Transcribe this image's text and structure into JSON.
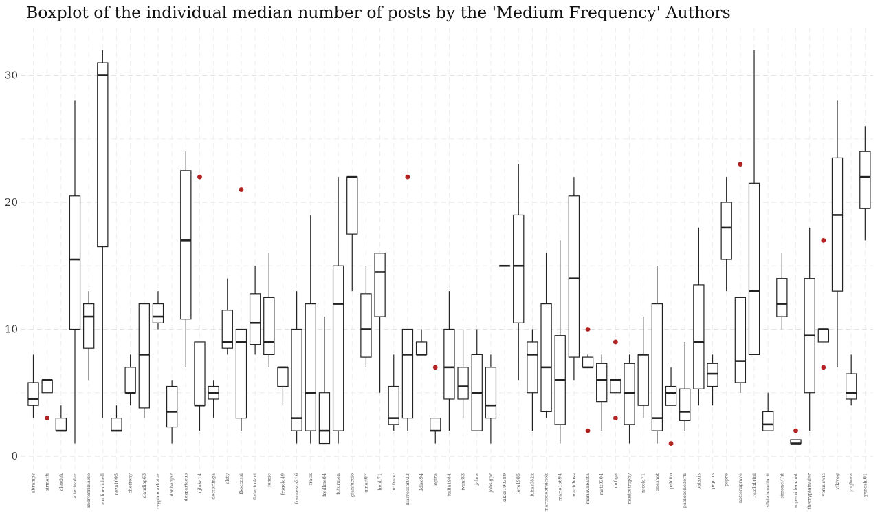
{
  "chart_data": {
    "type": "boxplot",
    "title": "Boxplot of the individual median number of posts by the 'Medium Frequency' Authors",
    "xlabel": "",
    "ylabel": "",
    "ylim": [
      -1.3,
      33.5
    ],
    "yticks": [
      0,
      10,
      20,
      30
    ],
    "grid": true,
    "outlier_color": "#b22222",
    "box_color": "#222222",
    "categories": [
      "abramps",
      "airmatti",
      "alexdek",
      "altertrader",
      "andreatrimaldo",
      "carolinecichell",
      "ceza1095",
      "chefrony",
      "claudiop63",
      "cryptomarketer",
      "danbadjar",
      "dexpartacus",
      "djluka14",
      "doctorlinga",
      "elsty",
      "fboccassi",
      "federicolari",
      "fonzie",
      "fragola49",
      "francesca216",
      "frack",
      "fredlme84",
      "futurmen",
      "gianfuccio",
      "ginatt07",
      "heidi71",
      "hrifranc",
      "illarrosser923",
      "ildivo94",
      "iopira",
      "italia1984",
      "ivanf83",
      "jabra",
      "jobs-gpr",
      "kikka190389",
      "lore1985",
      "lukas082x",
      "marcodebreiciok",
      "mario15694",
      "marioboss",
      "mariavabasta",
      "matt9304",
      "mrfiga",
      "musicetrophy",
      "nicola71",
      "oneshot",
      "pablito",
      "paolobenelforti",
      "pataxis",
      "peprus",
      "pepre",
      "notterupravè",
      "rscalabrini",
      "silviabenelforti",
      "simone77it",
      "supervideochat",
      "thecryptotrader",
      "veruuswis",
      "vikivog",
      "yoghera",
      "yunoshi01"
    ],
    "boxes": [
      {
        "min": 3,
        "q1": 4,
        "median": 4.5,
        "q3": 5.8,
        "max": 8,
        "outliers": []
      },
      {
        "min": 5,
        "q1": 5,
        "median": 6,
        "q3": 6,
        "max": 6,
        "outliers": [
          3
        ]
      },
      {
        "min": 2,
        "q1": 2,
        "median": 2,
        "q3": 3,
        "max": 4,
        "outliers": []
      },
      {
        "min": 1,
        "q1": 10,
        "median": 15.5,
        "q3": 20.5,
        "max": 28,
        "outliers": []
      },
      {
        "min": 6,
        "q1": 8.5,
        "median": 11,
        "q3": 12,
        "max": 13,
        "outliers": []
      },
      {
        "min": 3,
        "q1": 16.5,
        "median": 30,
        "q3": 31,
        "max": 32,
        "outliers": []
      },
      {
        "min": 2,
        "q1": 2,
        "median": 2,
        "q3": 3,
        "max": 4,
        "outliers": []
      },
      {
        "min": 4,
        "q1": 5,
        "median": 5,
        "q3": 7,
        "max": 8,
        "outliers": []
      },
      {
        "min": 3,
        "q1": 3.8,
        "median": 8,
        "q3": 12,
        "max": 12,
        "outliers": []
      },
      {
        "min": 10,
        "q1": 10.5,
        "median": 11,
        "q3": 12,
        "max": 13,
        "outliers": []
      },
      {
        "min": 1,
        "q1": 2.3,
        "median": 3.5,
        "q3": 5.5,
        "max": 6,
        "outliers": []
      },
      {
        "min": 7,
        "q1": 10.8,
        "median": 17,
        "q3": 22.5,
        "max": 24,
        "outliers": []
      },
      {
        "min": 2,
        "q1": 4,
        "median": 4,
        "q3": 9,
        "max": 9,
        "outliers": [
          22
        ]
      },
      {
        "min": 3,
        "q1": 4.5,
        "median": 5,
        "q3": 5.5,
        "max": 6,
        "outliers": []
      },
      {
        "min": 8,
        "q1": 8.5,
        "median": 9,
        "q3": 11.5,
        "max": 14,
        "outliers": []
      },
      {
        "min": 2,
        "q1": 3,
        "median": 9,
        "q3": 10,
        "max": 10,
        "outliers": [
          21
        ]
      },
      {
        "min": 8,
        "q1": 8.8,
        "median": 10.5,
        "q3": 12.8,
        "max": 15,
        "outliers": []
      },
      {
        "min": 7,
        "q1": 8,
        "median": 9,
        "q3": 12.5,
        "max": 16,
        "outliers": []
      },
      {
        "min": 4,
        "q1": 5.5,
        "median": 7,
        "q3": 7,
        "max": 7,
        "outliers": []
      },
      {
        "min": 1,
        "q1": 2,
        "median": 3,
        "q3": 10,
        "max": 13,
        "outliers": []
      },
      {
        "min": 1,
        "q1": 2,
        "median": 5,
        "q3": 12,
        "max": 19,
        "outliers": []
      },
      {
        "min": 1,
        "q1": 1,
        "median": 2,
        "q3": 5,
        "max": 11,
        "outliers": []
      },
      {
        "min": 1,
        "q1": 2,
        "median": 12,
        "q3": 15,
        "max": 22,
        "outliers": []
      },
      {
        "min": 13,
        "q1": 17.5,
        "median": 22,
        "q3": 22,
        "max": 22,
        "outliers": []
      },
      {
        "min": 7,
        "q1": 7.8,
        "median": 10,
        "q3": 12.8,
        "max": 15,
        "outliers": []
      },
      {
        "min": 5,
        "q1": 11,
        "median": 14.5,
        "q3": 16,
        "max": 16,
        "outliers": []
      },
      {
        "min": 2,
        "q1": 2.5,
        "median": 3,
        "q3": 5.5,
        "max": 8,
        "outliers": []
      },
      {
        "min": 2,
        "q1": 3,
        "median": 8,
        "q3": 10,
        "max": 10,
        "outliers": [
          22
        ]
      },
      {
        "min": 8,
        "q1": 8,
        "median": 8,
        "q3": 9,
        "max": 10,
        "outliers": []
      },
      {
        "min": 1,
        "q1": 2,
        "median": 2,
        "q3": 3,
        "max": 3,
        "outliers": [
          7
        ]
      },
      {
        "min": 2,
        "q1": 4.5,
        "median": 7,
        "q3": 10,
        "max": 13,
        "outliers": []
      },
      {
        "min": 3,
        "q1": 4.5,
        "median": 5.5,
        "q3": 7,
        "max": 10,
        "outliers": []
      },
      {
        "min": 2,
        "q1": 2,
        "median": 5,
        "q3": 8,
        "max": 10,
        "outliers": []
      },
      {
        "min": 1,
        "q1": 3,
        "median": 4,
        "q3": 7,
        "max": 8,
        "outliers": []
      },
      {
        "min": 15,
        "q1": 15,
        "median": 15,
        "q3": 15,
        "max": 15,
        "outliers": []
      },
      {
        "min": 6,
        "q1": 10.5,
        "median": 15,
        "q3": 19,
        "max": 23,
        "outliers": []
      },
      {
        "min": 2,
        "q1": 5,
        "median": 8,
        "q3": 9,
        "max": 10,
        "outliers": []
      },
      {
        "min": 3,
        "q1": 3.5,
        "median": 7,
        "q3": 12,
        "max": 16,
        "outliers": []
      },
      {
        "min": 1,
        "q1": 2.5,
        "median": 6,
        "q3": 9.5,
        "max": 17,
        "outliers": []
      },
      {
        "min": 6,
        "q1": 7.8,
        "median": 14,
        "q3": 20.5,
        "max": 22,
        "outliers": []
      },
      {
        "min": 7,
        "q1": 7,
        "median": 7,
        "q3": 7.8,
        "max": 8,
        "outliers": [
          10,
          2
        ]
      },
      {
        "min": 2,
        "q1": 4.3,
        "median": 6,
        "q3": 7.3,
        "max": 8,
        "outliers": []
      },
      {
        "min": 5,
        "q1": 5,
        "median": 6,
        "q3": 6,
        "max": 6,
        "outliers": [
          9,
          3
        ]
      },
      {
        "min": 1,
        "q1": 2.5,
        "median": 5,
        "q3": 7.3,
        "max": 8,
        "outliers": []
      },
      {
        "min": 3,
        "q1": 4,
        "median": 8,
        "q3": 8,
        "max": 11,
        "outliers": []
      },
      {
        "min": 1,
        "q1": 2,
        "median": 3,
        "q3": 12,
        "max": 15,
        "outliers": []
      },
      {
        "min": 4,
        "q1": 4,
        "median": 5,
        "q3": 5.5,
        "max": 7,
        "outliers": [
          1
        ]
      },
      {
        "min": 2,
        "q1": 2.8,
        "median": 3.5,
        "q3": 5.3,
        "max": 9,
        "outliers": []
      },
      {
        "min": 4,
        "q1": 5.3,
        "median": 9,
        "q3": 13.5,
        "max": 18,
        "outliers": []
      },
      {
        "min": 4,
        "q1": 5.5,
        "median": 6.5,
        "q3": 7.3,
        "max": 8,
        "outliers": []
      },
      {
        "min": 13,
        "q1": 15.5,
        "median": 18,
        "q3": 20,
        "max": 22,
        "outliers": []
      },
      {
        "min": 5,
        "q1": 5.8,
        "median": 7.5,
        "q3": 12.5,
        "max": 12.5,
        "outliers": [
          23
        ]
      },
      {
        "min": 8,
        "q1": 8,
        "median": 13,
        "q3": 21.5,
        "max": 32,
        "outliers": []
      },
      {
        "min": 2,
        "q1": 2,
        "median": 2.5,
        "q3": 3.5,
        "max": 5,
        "outliers": []
      },
      {
        "min": 10,
        "q1": 11,
        "median": 12,
        "q3": 14,
        "max": 16,
        "outliers": []
      },
      {
        "min": 1,
        "q1": 1,
        "median": 1,
        "q3": 1.3,
        "max": 1.3,
        "outliers": [
          2
        ]
      },
      {
        "min": 2,
        "q1": 5,
        "median": 9.5,
        "q3": 14,
        "max": 18,
        "outliers": []
      },
      {
        "min": 9,
        "q1": 9,
        "median": 10,
        "q3": 10,
        "max": 10,
        "outliers": [
          17,
          7
        ]
      },
      {
        "min": 7,
        "q1": 13,
        "median": 19,
        "q3": 23.5,
        "max": 28,
        "outliers": []
      },
      {
        "min": 4,
        "q1": 4.5,
        "median": 5,
        "q3": 6.5,
        "max": 8,
        "outliers": []
      },
      {
        "min": 17,
        "q1": 19.5,
        "median": 22,
        "q3": 24,
        "max": 26,
        "outliers": []
      }
    ]
  }
}
